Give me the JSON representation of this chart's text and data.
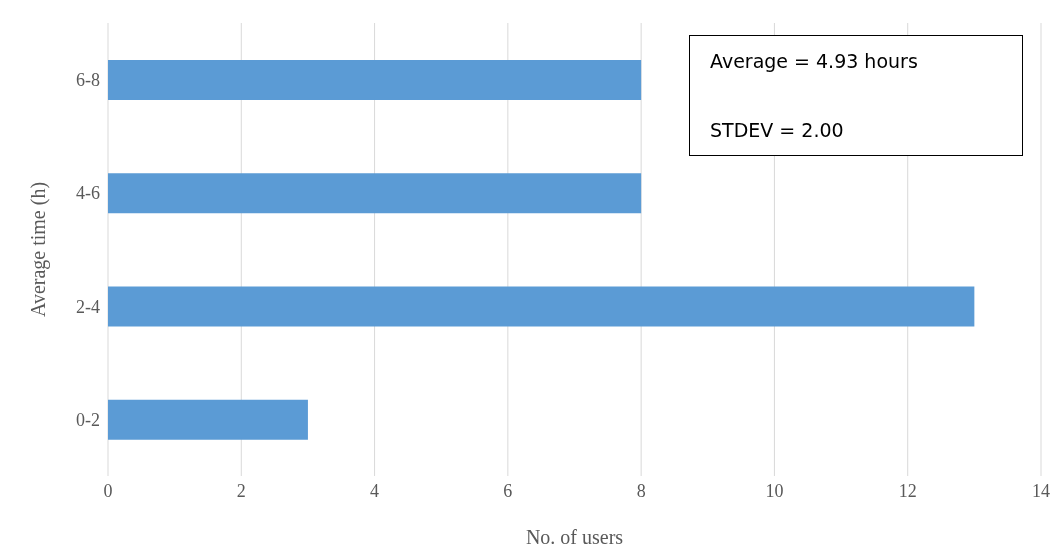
{
  "chart_data": {
    "type": "bar",
    "orientation": "horizontal",
    "categories": [
      "6-8",
      "4-6",
      "2-4",
      "0-2"
    ],
    "values": [
      8,
      8,
      13,
      3
    ],
    "color": "#5b9bd5",
    "xlim": [
      0,
      14
    ],
    "xticks": [
      0,
      2,
      4,
      6,
      8,
      10,
      12,
      14
    ],
    "xlabel": "No. of users",
    "ylabel": "Average time (h)",
    "grid": "x",
    "annotations": [
      "Average = 4.93 hours",
      "STDEV = 2.00"
    ]
  }
}
